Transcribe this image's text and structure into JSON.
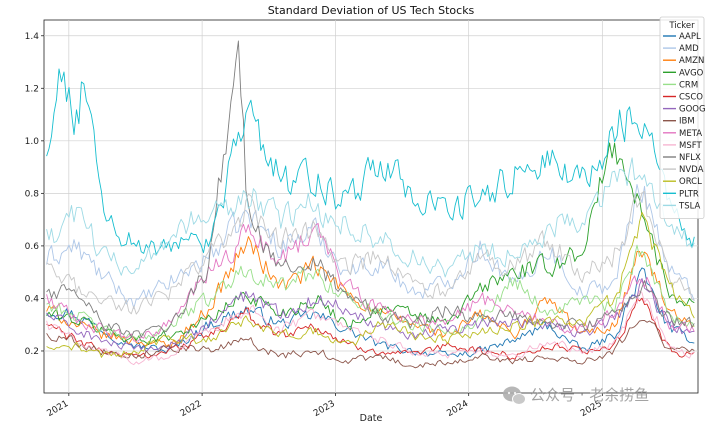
{
  "chart_data": {
    "type": "line",
    "title": "Standard Deviation of US Tech Stocks",
    "xlabel": "Date",
    "ylabel": "",
    "x_range": [
      "2020-10-25",
      "2025-09-20"
    ],
    "ylim": [
      0.04,
      1.46
    ],
    "x_ticks": [
      {
        "label": "2021",
        "date": "2021-01-01"
      },
      {
        "label": "2022",
        "date": "2022-01-01"
      },
      {
        "label": "2023",
        "date": "2023-01-01"
      },
      {
        "label": "2024",
        "date": "2024-01-01"
      },
      {
        "label": "2025",
        "date": "2025-01-01"
      }
    ],
    "y_ticks": [
      0.2,
      0.4,
      0.6,
      0.8,
      1.0,
      1.2,
      1.4
    ],
    "y_tick_labels": [
      "0.2",
      "0.4",
      "0.6",
      "0.8",
      "1.0",
      "1.2",
      "1.4"
    ],
    "grid": true,
    "legend_title": "Ticker",
    "legend_position": "top-right",
    "series": [
      {
        "name": "AAPL",
        "color": "#1f77b4",
        "x": [
          "2020-11-01",
          "2021-01-15",
          "2021-04-01",
          "2021-07-01",
          "2021-10-01",
          "2022-01-15",
          "2022-05-01",
          "2022-08-01",
          "2022-11-01",
          "2023-02-01",
          "2023-05-01",
          "2023-08-01",
          "2023-11-01",
          "2024-02-01",
          "2024-05-01",
          "2024-08-01",
          "2024-11-01",
          "2025-02-01",
          "2025-04-15",
          "2025-07-01",
          "2025-09-10"
        ],
        "y": [
          0.36,
          0.34,
          0.28,
          0.22,
          0.2,
          0.3,
          0.36,
          0.3,
          0.34,
          0.28,
          0.22,
          0.2,
          0.18,
          0.2,
          0.24,
          0.3,
          0.2,
          0.26,
          0.5,
          0.28,
          0.24
        ]
      },
      {
        "name": "AMD",
        "color": "#aec7e8",
        "x": [
          "2020-11-01",
          "2021-01-15",
          "2021-04-01",
          "2021-07-01",
          "2021-10-01",
          "2022-01-15",
          "2022-05-01",
          "2022-08-01",
          "2022-11-01",
          "2023-02-01",
          "2023-05-01",
          "2023-08-01",
          "2023-11-01",
          "2024-02-01",
          "2024-05-01",
          "2024-08-01",
          "2024-11-01",
          "2025-02-01",
          "2025-04-15",
          "2025-07-01",
          "2025-09-10"
        ],
        "y": [
          0.55,
          0.6,
          0.48,
          0.38,
          0.46,
          0.56,
          0.72,
          0.6,
          0.66,
          0.5,
          0.54,
          0.42,
          0.46,
          0.6,
          0.44,
          0.6,
          0.42,
          0.46,
          0.86,
          0.5,
          0.42
        ]
      },
      {
        "name": "AMZN",
        "color": "#ff7f0e",
        "x": [
          "2020-11-01",
          "2021-01-15",
          "2021-04-01",
          "2021-07-01",
          "2021-10-01",
          "2022-01-15",
          "2022-05-01",
          "2022-08-01",
          "2022-11-01",
          "2023-02-01",
          "2023-05-01",
          "2023-08-01",
          "2023-11-01",
          "2024-02-01",
          "2024-05-01",
          "2024-08-01",
          "2024-11-01",
          "2025-02-01",
          "2025-04-15",
          "2025-07-01",
          "2025-09-10"
        ],
        "y": [
          0.36,
          0.3,
          0.26,
          0.24,
          0.22,
          0.36,
          0.62,
          0.44,
          0.52,
          0.42,
          0.34,
          0.3,
          0.26,
          0.34,
          0.26,
          0.4,
          0.26,
          0.3,
          0.6,
          0.34,
          0.28
        ]
      },
      {
        "name": "AVGO",
        "color": "#2ca02c",
        "x": [
          "2020-11-01",
          "2021-01-15",
          "2021-04-01",
          "2021-07-01",
          "2021-10-01",
          "2022-01-15",
          "2022-05-01",
          "2022-08-01",
          "2022-11-01",
          "2023-02-01",
          "2023-05-01",
          "2023-08-01",
          "2023-11-01",
          "2024-02-01",
          "2024-05-01",
          "2024-08-01",
          "2024-11-01",
          "2025-02-01",
          "2025-04-15",
          "2025-07-01",
          "2025-09-10"
        ],
        "y": [
          0.34,
          0.32,
          0.28,
          0.24,
          0.26,
          0.32,
          0.42,
          0.34,
          0.4,
          0.3,
          0.36,
          0.34,
          0.3,
          0.44,
          0.5,
          0.52,
          0.58,
          1.0,
          0.72,
          0.42,
          0.38
        ]
      },
      {
        "name": "CRM",
        "color": "#98df8a",
        "x": [
          "2020-11-01",
          "2021-01-15",
          "2021-04-01",
          "2021-07-01",
          "2021-10-01",
          "2022-01-15",
          "2022-05-01",
          "2022-08-01",
          "2022-11-01",
          "2023-02-01",
          "2023-05-01",
          "2023-08-01",
          "2023-11-01",
          "2024-02-01",
          "2024-05-01",
          "2024-08-01",
          "2024-11-01",
          "2025-02-01",
          "2025-04-15",
          "2025-07-01",
          "2025-09-10"
        ],
        "y": [
          0.38,
          0.34,
          0.28,
          0.24,
          0.3,
          0.4,
          0.52,
          0.44,
          0.5,
          0.4,
          0.34,
          0.3,
          0.28,
          0.32,
          0.48,
          0.34,
          0.4,
          0.36,
          0.6,
          0.34,
          0.3
        ]
      },
      {
        "name": "CSCO",
        "color": "#d62728",
        "x": [
          "2020-11-01",
          "2021-01-15",
          "2021-04-01",
          "2021-07-01",
          "2021-10-01",
          "2022-01-15",
          "2022-05-01",
          "2022-08-01",
          "2022-11-01",
          "2023-02-01",
          "2023-05-01",
          "2023-08-01",
          "2023-11-01",
          "2024-02-01",
          "2024-05-01",
          "2024-08-01",
          "2024-11-01",
          "2025-02-01",
          "2025-04-15",
          "2025-07-01",
          "2025-09-10"
        ],
        "y": [
          0.3,
          0.24,
          0.2,
          0.18,
          0.2,
          0.26,
          0.34,
          0.26,
          0.3,
          0.22,
          0.2,
          0.18,
          0.22,
          0.2,
          0.18,
          0.22,
          0.2,
          0.22,
          0.4,
          0.2,
          0.18
        ]
      },
      {
        "name": "GOOG",
        "color": "#9467bd",
        "x": [
          "2020-11-01",
          "2021-01-15",
          "2021-04-01",
          "2021-07-01",
          "2021-10-01",
          "2022-01-15",
          "2022-05-01",
          "2022-08-01",
          "2022-11-01",
          "2023-02-01",
          "2023-05-01",
          "2023-08-01",
          "2023-11-01",
          "2024-02-01",
          "2024-05-01",
          "2024-08-01",
          "2024-11-01",
          "2025-02-01",
          "2025-04-15",
          "2025-07-01",
          "2025-09-10"
        ],
        "y": [
          0.34,
          0.28,
          0.24,
          0.2,
          0.22,
          0.3,
          0.42,
          0.34,
          0.4,
          0.36,
          0.3,
          0.26,
          0.28,
          0.3,
          0.32,
          0.3,
          0.26,
          0.32,
          0.46,
          0.3,
          0.26
        ]
      },
      {
        "name": "IBM",
        "color": "#8c564b",
        "x": [
          "2020-11-01",
          "2021-01-15",
          "2021-04-01",
          "2021-07-01",
          "2021-10-01",
          "2022-01-15",
          "2022-05-01",
          "2022-08-01",
          "2022-11-01",
          "2023-02-01",
          "2023-05-01",
          "2023-08-01",
          "2023-11-01",
          "2024-02-01",
          "2024-05-01",
          "2024-08-01",
          "2024-11-01",
          "2025-02-01",
          "2025-04-15",
          "2025-07-01",
          "2025-09-10"
        ],
        "y": [
          0.26,
          0.24,
          0.2,
          0.18,
          0.22,
          0.2,
          0.24,
          0.18,
          0.2,
          0.16,
          0.18,
          0.14,
          0.16,
          0.18,
          0.16,
          0.18,
          0.16,
          0.2,
          0.36,
          0.2,
          0.2
        ]
      },
      {
        "name": "META",
        "color": "#e377c2",
        "x": [
          "2020-11-01",
          "2021-01-15",
          "2021-04-01",
          "2021-07-01",
          "2021-10-01",
          "2022-01-15",
          "2022-05-01",
          "2022-08-01",
          "2022-11-01",
          "2023-02-01",
          "2023-05-01",
          "2023-08-01",
          "2023-11-01",
          "2024-02-01",
          "2024-05-01",
          "2024-08-01",
          "2024-11-01",
          "2025-02-01",
          "2025-04-15",
          "2025-07-01",
          "2025-09-10"
        ],
        "y": [
          0.4,
          0.32,
          0.28,
          0.24,
          0.3,
          0.5,
          0.64,
          0.56,
          0.66,
          0.44,
          0.36,
          0.32,
          0.3,
          0.4,
          0.36,
          0.3,
          0.28,
          0.34,
          0.5,
          0.3,
          0.28
        ]
      },
      {
        "name": "MSFT",
        "color": "#f7b6d2",
        "x": [
          "2020-11-01",
          "2021-01-15",
          "2021-04-01",
          "2021-07-01",
          "2021-10-01",
          "2022-01-15",
          "2022-05-01",
          "2022-08-01",
          "2022-11-01",
          "2023-02-01",
          "2023-05-01",
          "2023-08-01",
          "2023-11-01",
          "2024-02-01",
          "2024-05-01",
          "2024-08-01",
          "2024-11-01",
          "2025-02-01",
          "2025-04-15",
          "2025-07-01",
          "2025-09-10"
        ],
        "y": [
          0.3,
          0.24,
          0.2,
          0.16,
          0.18,
          0.28,
          0.36,
          0.28,
          0.34,
          0.28,
          0.24,
          0.2,
          0.18,
          0.2,
          0.18,
          0.24,
          0.2,
          0.22,
          0.44,
          0.22,
          0.18
        ]
      },
      {
        "name": "NFLX",
        "color": "#7f7f7f",
        "x": [
          "2020-11-01",
          "2021-01-15",
          "2021-04-01",
          "2021-07-01",
          "2021-10-01",
          "2022-01-15",
          "2022-04-10",
          "2022-05-01",
          "2022-08-01",
          "2022-11-01",
          "2023-02-01",
          "2023-05-01",
          "2023-08-01",
          "2023-11-01",
          "2024-02-01",
          "2024-05-01",
          "2024-08-01",
          "2024-11-01",
          "2025-02-01",
          "2025-04-15",
          "2025-07-01",
          "2025-09-10"
        ],
        "y": [
          0.4,
          0.46,
          0.3,
          0.26,
          0.28,
          0.52,
          1.41,
          0.72,
          0.5,
          0.54,
          0.4,
          0.34,
          0.3,
          0.36,
          0.32,
          0.34,
          0.3,
          0.3,
          0.34,
          0.46,
          0.32,
          0.3
        ]
      },
      {
        "name": "NVDA",
        "color": "#c7c7c7",
        "x": [
          "2020-11-01",
          "2021-01-15",
          "2021-04-01",
          "2021-07-01",
          "2021-10-01",
          "2022-01-15",
          "2022-05-01",
          "2022-08-01",
          "2022-11-01",
          "2023-02-01",
          "2023-05-01",
          "2023-08-01",
          "2023-11-01",
          "2024-02-01",
          "2024-05-01",
          "2024-08-01",
          "2024-11-01",
          "2025-02-01",
          "2025-04-15",
          "2025-07-01",
          "2025-09-10"
        ],
        "y": [
          0.5,
          0.44,
          0.4,
          0.36,
          0.42,
          0.56,
          0.74,
          0.62,
          0.66,
          0.52,
          0.56,
          0.44,
          0.42,
          0.54,
          0.52,
          0.62,
          0.5,
          0.56,
          0.8,
          0.48,
          0.4
        ]
      },
      {
        "name": "ORCL",
        "color": "#bcbd22",
        "x": [
          "2020-11-01",
          "2021-01-15",
          "2021-04-01",
          "2021-07-01",
          "2021-10-01",
          "2022-01-15",
          "2022-05-01",
          "2022-08-01",
          "2022-11-01",
          "2023-02-01",
          "2023-05-01",
          "2023-08-01",
          "2023-11-01",
          "2024-02-01",
          "2024-05-01",
          "2024-08-01",
          "2024-11-01",
          "2025-02-01",
          "2025-04-15",
          "2025-07-01",
          "2025-09-10"
        ],
        "y": [
          0.2,
          0.22,
          0.18,
          0.2,
          0.26,
          0.24,
          0.32,
          0.26,
          0.28,
          0.22,
          0.3,
          0.26,
          0.24,
          0.28,
          0.3,
          0.32,
          0.3,
          0.4,
          0.7,
          0.44,
          0.34
        ]
      },
      {
        "name": "PLTR",
        "color": "#17becf",
        "x": [
          "2020-11-01",
          "2020-12-01",
          "2021-01-15",
          "2021-02-10",
          "2021-04-01",
          "2021-07-01",
          "2021-10-01",
          "2022-01-15",
          "2022-05-01",
          "2022-08-01",
          "2022-11-01",
          "2023-02-01",
          "2023-05-01",
          "2023-08-01",
          "2023-11-01",
          "2024-02-01",
          "2024-05-01",
          "2024-08-01",
          "2024-11-01",
          "2025-02-01",
          "2025-04-15",
          "2025-07-01",
          "2025-09-10"
        ],
        "y": [
          0.86,
          1.37,
          1.0,
          1.23,
          0.72,
          0.6,
          0.58,
          0.62,
          1.12,
          0.84,
          0.86,
          0.76,
          0.94,
          0.8,
          0.72,
          0.8,
          0.86,
          0.96,
          0.82,
          1.06,
          1.12,
          0.72,
          0.6
        ]
      },
      {
        "name": "TSLA",
        "color": "#9edae5",
        "x": [
          "2020-11-01",
          "2021-01-15",
          "2021-04-01",
          "2021-07-01",
          "2021-10-01",
          "2022-01-15",
          "2022-05-01",
          "2022-08-01",
          "2022-11-01",
          "2023-02-01",
          "2023-05-01",
          "2023-08-01",
          "2023-11-01",
          "2024-02-01",
          "2024-05-01",
          "2024-08-01",
          "2024-11-01",
          "2025-02-01",
          "2025-04-15",
          "2025-07-01",
          "2025-09-10"
        ],
        "y": [
          0.6,
          0.72,
          0.58,
          0.5,
          0.64,
          0.72,
          0.8,
          0.7,
          0.76,
          0.66,
          0.62,
          0.56,
          0.5,
          0.6,
          0.56,
          0.66,
          0.7,
          0.86,
          0.9,
          0.7,
          0.6
        ]
      }
    ]
  },
  "watermark": {
    "icon": "chat-bubble-icon",
    "text": "公众号 · 老余捞鱼"
  }
}
